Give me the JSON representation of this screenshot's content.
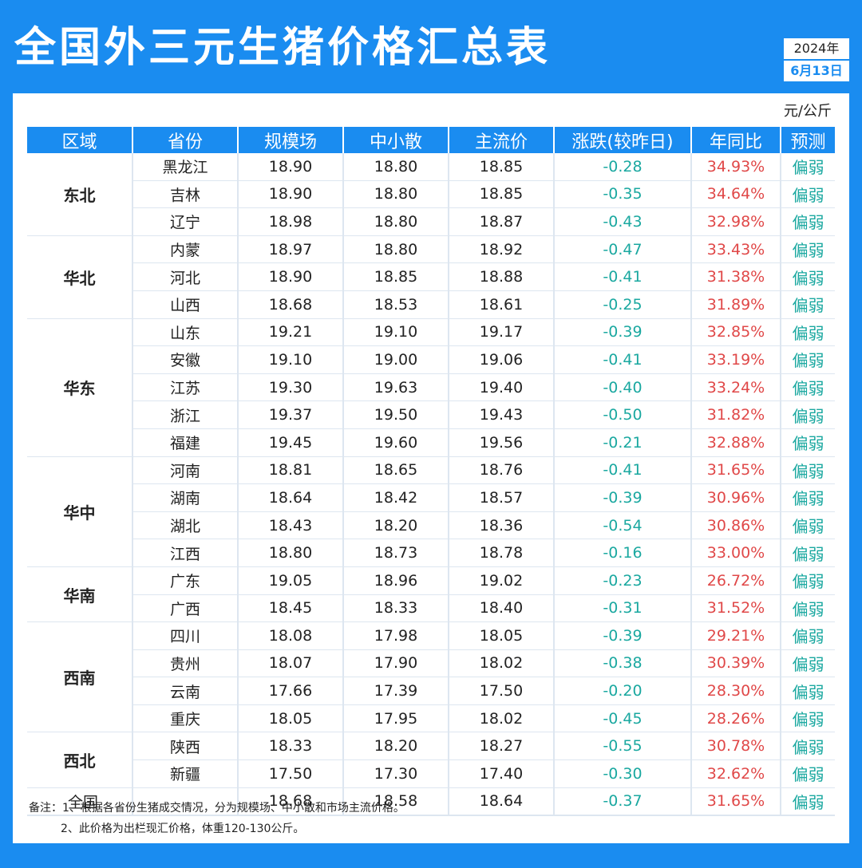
{
  "title": "全国外三元生猪价格汇总表",
  "date": {
    "year": "2024年",
    "day": "6月13日"
  },
  "unit": "元/公斤",
  "headers": [
    "区域",
    "省份",
    "规模场",
    "中小散",
    "主流价",
    "涨跌(较昨日)",
    "年同比",
    "预测"
  ],
  "regions": [
    {
      "name": "东北",
      "rows": [
        [
          "黑龙江",
          "18.90",
          "18.80",
          "18.85",
          "-0.28",
          "34.93%",
          "偏弱"
        ],
        [
          "吉林",
          "18.90",
          "18.80",
          "18.85",
          "-0.35",
          "34.64%",
          "偏弱"
        ],
        [
          "辽宁",
          "18.98",
          "18.80",
          "18.87",
          "-0.43",
          "32.98%",
          "偏弱"
        ]
      ]
    },
    {
      "name": "华北",
      "rows": [
        [
          "内蒙",
          "18.97",
          "18.80",
          "18.92",
          "-0.47",
          "33.43%",
          "偏弱"
        ],
        [
          "河北",
          "18.90",
          "18.85",
          "18.88",
          "-0.41",
          "31.38%",
          "偏弱"
        ],
        [
          "山西",
          "18.68",
          "18.53",
          "18.61",
          "-0.25",
          "31.89%",
          "偏弱"
        ]
      ]
    },
    {
      "name": "华东",
      "rows": [
        [
          "山东",
          "19.21",
          "19.10",
          "19.17",
          "-0.39",
          "32.85%",
          "偏弱"
        ],
        [
          "安徽",
          "19.10",
          "19.00",
          "19.06",
          "-0.41",
          "33.19%",
          "偏弱"
        ],
        [
          "江苏",
          "19.30",
          "19.63",
          "19.40",
          "-0.40",
          "33.24%",
          "偏弱"
        ],
        [
          "浙江",
          "19.37",
          "19.50",
          "19.43",
          "-0.50",
          "31.82%",
          "偏弱"
        ],
        [
          "福建",
          "19.45",
          "19.60",
          "19.56",
          "-0.21",
          "32.88%",
          "偏弱"
        ]
      ]
    },
    {
      "name": "华中",
      "rows": [
        [
          "河南",
          "18.81",
          "18.65",
          "18.76",
          "-0.41",
          "31.65%",
          "偏弱"
        ],
        [
          "湖南",
          "18.64",
          "18.42",
          "18.57",
          "-0.39",
          "30.96%",
          "偏弱"
        ],
        [
          "湖北",
          "18.43",
          "18.20",
          "18.36",
          "-0.54",
          "30.86%",
          "偏弱"
        ],
        [
          "江西",
          "18.80",
          "18.73",
          "18.78",
          "-0.16",
          "33.00%",
          "偏弱"
        ]
      ]
    },
    {
      "name": "华南",
      "rows": [
        [
          "广东",
          "19.05",
          "18.96",
          "19.02",
          "-0.23",
          "26.72%",
          "偏弱"
        ],
        [
          "广西",
          "18.45",
          "18.33",
          "18.40",
          "-0.31",
          "31.52%",
          "偏弱"
        ]
      ]
    },
    {
      "name": "西南",
      "rows": [
        [
          "四川",
          "18.08",
          "17.98",
          "18.05",
          "-0.39",
          "29.21%",
          "偏弱"
        ],
        [
          "贵州",
          "18.07",
          "17.90",
          "18.02",
          "-0.38",
          "30.39%",
          "偏弱"
        ],
        [
          "云南",
          "17.66",
          "17.39",
          "17.50",
          "-0.20",
          "28.30%",
          "偏弱"
        ],
        [
          "重庆",
          "18.05",
          "17.95",
          "18.02",
          "-0.45",
          "28.26%",
          "偏弱"
        ]
      ]
    },
    {
      "name": "西北",
      "rows": [
        [
          "陕西",
          "18.33",
          "18.20",
          "18.27",
          "-0.55",
          "30.78%",
          "偏弱"
        ],
        [
          "新疆",
          "17.50",
          "17.30",
          "17.40",
          "-0.30",
          "32.62%",
          "偏弱"
        ]
      ]
    }
  ],
  "national": [
    "全国",
    "18.68",
    "18.58",
    "18.64",
    "-0.37",
    "31.65%",
    "偏弱"
  ],
  "notes": [
    "备注：1、根据各省份生猪成交情况，分为规模场、中小散和市场主流价格。",
    "2、此价格为出栏现汇价格，体重120-130公斤。"
  ]
}
